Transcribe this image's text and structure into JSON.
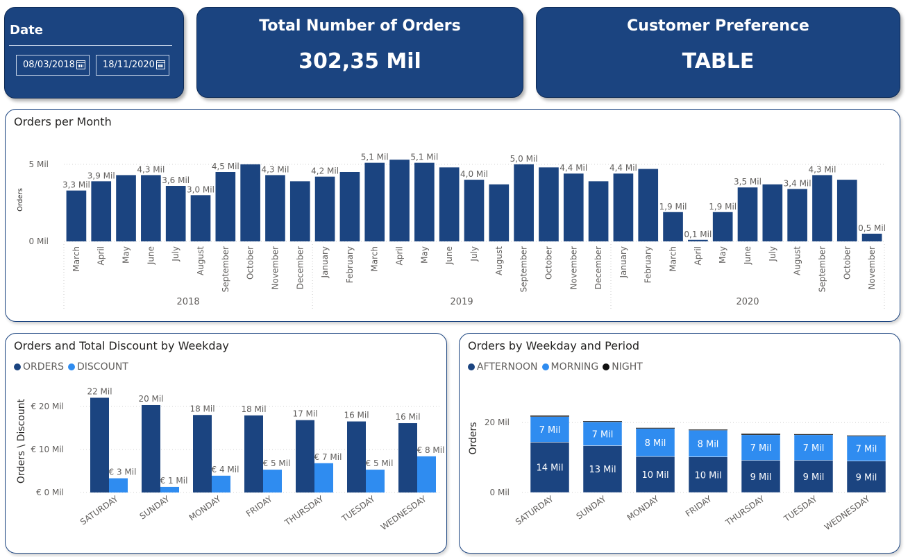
{
  "date_filter": {
    "label": "Date",
    "start": "08/03/2018",
    "end": "18/11/2020"
  },
  "kpi_orders": {
    "title": "Total Number of Orders",
    "value": "302,35 Mil"
  },
  "kpi_preference": {
    "title": "Customer Preference",
    "value": "TABLE"
  },
  "colors": {
    "dark_blue": "#1b4480",
    "light_blue": "#2f8cf0",
    "night": "#111111"
  },
  "charts": {
    "monthly": {
      "title": "Orders per Month"
    },
    "discount": {
      "title": "Orders and Total Discount by Weekday"
    },
    "period": {
      "title": "Orders by Weekday and Period"
    }
  },
  "chart_data": [
    {
      "type": "bar",
      "title": "Orders per Month",
      "ylabel": "Orders",
      "ylim": [
        0,
        5.4
      ],
      "yticks": [
        {
          "value": 0,
          "label": "0 Mil"
        },
        {
          "value": 5,
          "label": "5 Mil"
        }
      ],
      "groups": [
        {
          "label": "2018",
          "count": 10
        },
        {
          "label": "2019",
          "count": 12
        },
        {
          "label": "2020",
          "count": 11
        }
      ],
      "categories": [
        "March",
        "April",
        "May",
        "June",
        "July",
        "August",
        "September",
        "October",
        "November",
        "December",
        "January",
        "February",
        "March",
        "April",
        "May",
        "June",
        "July",
        "August",
        "September",
        "October",
        "November",
        "December",
        "January",
        "February",
        "March",
        "April",
        "May",
        "June",
        "July",
        "August",
        "September",
        "October",
        "November"
      ],
      "values": [
        3.3,
        3.9,
        4.3,
        4.3,
        3.6,
        3.0,
        4.5,
        5.0,
        4.3,
        3.9,
        4.2,
        4.5,
        5.1,
        5.3,
        5.1,
        4.8,
        4.0,
        3.7,
        5.0,
        4.8,
        4.4,
        3.9,
        4.4,
        4.7,
        1.9,
        0.1,
        1.9,
        3.5,
        3.7,
        3.4,
        4.3,
        4.0,
        0.5
      ],
      "data_labels": [
        "3,3 Mil",
        "3,9 Mil",
        "",
        "4,3 Mil",
        "3,6 Mil",
        "3,0 Mil",
        "4,5 Mil",
        "",
        "4,3 Mil",
        "",
        "4,2 Mil",
        "",
        "5,1 Mil",
        "",
        "5,1 Mil",
        "",
        "4,0 Mil",
        "",
        "5,0 Mil",
        "",
        "4,4 Mil",
        "",
        "4,4 Mil",
        "",
        "1,9 Mil",
        "0,1 Mil",
        "1,9 Mil",
        "3,5 Mil",
        "",
        "3,4 Mil",
        "4,3 Mil",
        "",
        "0,5 Mil"
      ],
      "grid": true
    },
    {
      "type": "bar",
      "title": "Orders and Total Discount by Weekday",
      "ylabel": "Orders \\ Discount",
      "legend_position": "top-left",
      "ylim": [
        0,
        24
      ],
      "yticks": [
        {
          "value": 0,
          "label": "€ 0 Mil"
        },
        {
          "value": 10,
          "label": "€ 10 Mil"
        },
        {
          "value": 20,
          "label": "€ 20 Mil"
        }
      ],
      "categories": [
        "SATURDAY",
        "SUNDAY",
        "MONDAY",
        "FRIDAY",
        "THURSDAY",
        "TUESDAY",
        "WEDNESDAY"
      ],
      "series": [
        {
          "name": "ORDERS",
          "color": "#1b4480",
          "values": [
            22,
            20.3,
            18,
            17.9,
            16.8,
            16.5,
            16.1
          ],
          "labels": [
            "22 Mil",
            "20 Mil",
            "18 Mil",
            "18 Mil",
            "17 Mil",
            "16 Mil",
            "16 Mil"
          ]
        },
        {
          "name": "DISCOUNT",
          "color": "#2f8cf0",
          "values": [
            3.3,
            1.3,
            3.9,
            5.3,
            6.8,
            5.3,
            8.4
          ],
          "labels": [
            "€ 3 Mil",
            "€ 1 Mil",
            "€ 4 Mil",
            "€ 5 Mil",
            "€ 7 Mil",
            "€ 5 Mil",
            "€ 8 Mil"
          ]
        }
      ],
      "grid": true
    },
    {
      "type": "bar",
      "stacked": true,
      "title": "Orders by Weekday and Period",
      "ylabel": "Orders",
      "legend_position": "top-left",
      "ylim": [
        0,
        25
      ],
      "yticks": [
        {
          "value": 0,
          "label": "0 Mil"
        },
        {
          "value": 20,
          "label": "20 Mil"
        }
      ],
      "categories": [
        "SATURDAY",
        "SUNDAY",
        "MONDAY",
        "FRIDAY",
        "THURSDAY",
        "TUESDAY",
        "WEDNESDAY"
      ],
      "series": [
        {
          "name": "AFTERNOON",
          "color": "#1b4480",
          "values": [
            14.4,
            13.4,
            10.3,
            10.2,
            9.2,
            9.2,
            9
          ],
          "labels": [
            "14 Mil",
            "13 Mil",
            "10 Mil",
            "10 Mil",
            "9 Mil",
            "9 Mil",
            "9 Mil"
          ]
        },
        {
          "name": "MORNING",
          "color": "#2f8cf0",
          "values": [
            7.3,
            6.8,
            8,
            7.6,
            7.3,
            7.3,
            7.1
          ],
          "labels": [
            "7 Mil",
            "7 Mil",
            "8 Mil",
            "8 Mil",
            "7 Mil",
            "7 Mil",
            "7 Mil"
          ]
        },
        {
          "name": "NIGHT",
          "color": "#111111",
          "values": [
            0.3,
            0.2,
            0.2,
            0.2,
            0.3,
            0.2,
            0.2
          ],
          "labels": []
        }
      ],
      "grid": true
    }
  ]
}
